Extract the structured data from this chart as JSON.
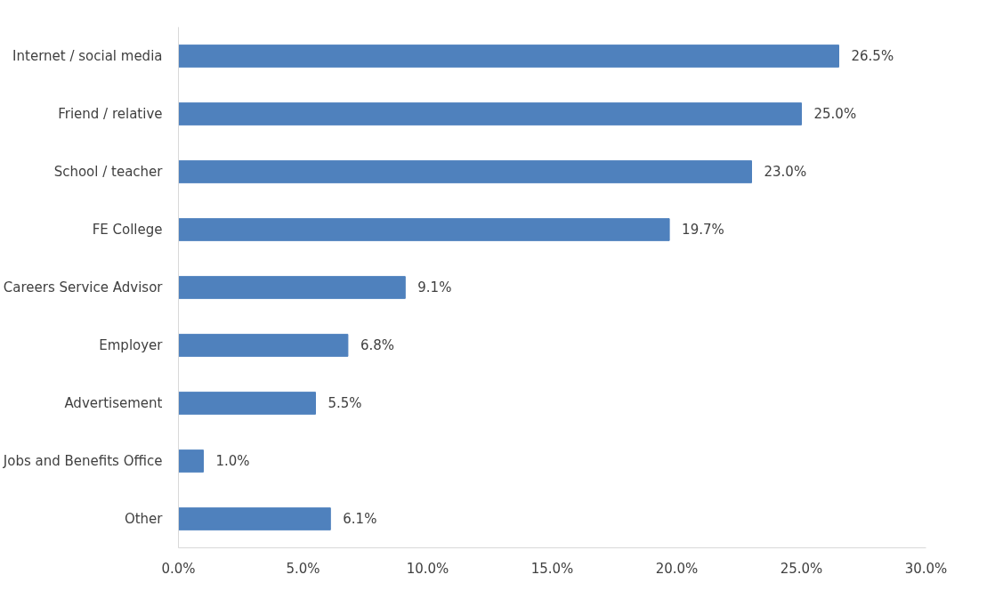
{
  "chart_data": {
    "type": "bar",
    "orientation": "horizontal",
    "categories": [
      "Internet / social media",
      "Friend / relative",
      "School / teacher",
      "FE College",
      "Careers Service Advisor",
      "Employer",
      "Advertisement",
      "Jobs and Benefits Office",
      "Other"
    ],
    "values": [
      26.5,
      25.0,
      23.0,
      19.7,
      9.1,
      6.8,
      5.5,
      1.0,
      6.1
    ],
    "value_labels": [
      "26.5%",
      "25.0%",
      "23.0%",
      "19.7%",
      "9.1%",
      "6.8%",
      "5.5%",
      "1.0%",
      "6.1%"
    ],
    "color": "#4f81bd",
    "xlim": [
      0,
      30
    ],
    "xticks": [
      {
        "value": 0,
        "label": "0.0%"
      },
      {
        "value": 5,
        "label": "5.0%"
      },
      {
        "value": 10,
        "label": "10.0%"
      },
      {
        "value": 15,
        "label": "15.0%"
      },
      {
        "value": 20,
        "label": "20.0%"
      },
      {
        "value": 25,
        "label": "25.0%"
      },
      {
        "value": 30,
        "label": "30.0%"
      }
    ],
    "grid": false
  }
}
